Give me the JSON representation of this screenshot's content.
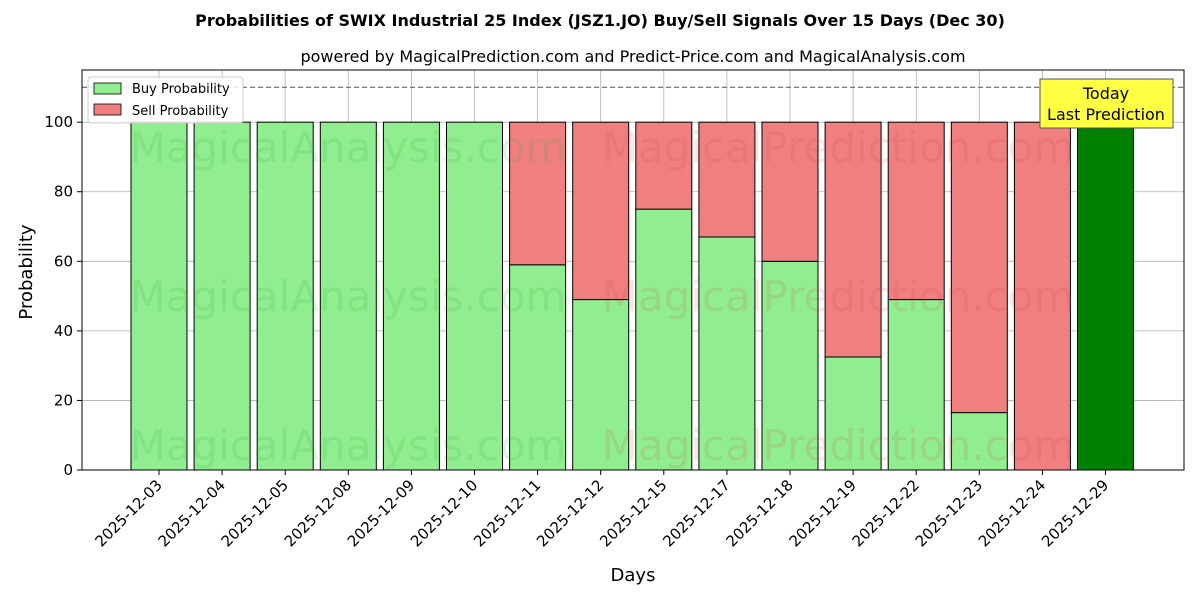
{
  "chart_data": {
    "type": "bar",
    "stacked": true,
    "title": "Probabilities of SWIX Industrial 25 Index (JSZ1.JO) Buy/Sell Signals Over 15 Days (Dec 30)",
    "subtitle": "powered by MagicalPrediction.com and Predict-Price.com and MagicalAnalysis.com",
    "xlabel": "Days",
    "ylabel": "Probability",
    "ylim": [
      0,
      115
    ],
    "yticks": [
      "0",
      "20",
      "40",
      "60",
      "80",
      "100"
    ],
    "grid": true,
    "legend_position": "top-left",
    "reference_line": 110,
    "categories": [
      "2025-12-03",
      "2025-12-04",
      "2025-12-05",
      "2025-12-08",
      "2025-12-09",
      "2025-12-10",
      "2025-12-11",
      "2025-12-12",
      "2025-12-15",
      "2025-12-17",
      "2025-12-18",
      "2025-12-19",
      "2025-12-22",
      "2025-12-23",
      "2025-12-24",
      "2025-12-29"
    ],
    "series": [
      {
        "name": "Buy Probability",
        "color": "#90ee90",
        "values": [
          100,
          100,
          100,
          100,
          100,
          100,
          59,
          49,
          75,
          67,
          60,
          32.5,
          49,
          16.5,
          0,
          100
        ]
      },
      {
        "name": "Sell Probability",
        "color": "#f08080",
        "values": [
          0,
          0,
          0,
          0,
          0,
          0,
          41,
          51,
          25,
          33,
          40,
          67.5,
          51,
          83.5,
          100,
          0
        ]
      }
    ],
    "highlight": {
      "index": 15,
      "color": "#008000"
    },
    "annotation": {
      "lines": [
        "Today",
        "Last Prediction"
      ],
      "background": "#ffff44"
    },
    "watermarks": [
      "MagicalAnalysis.com",
      "MagicalPrediction.com"
    ]
  }
}
